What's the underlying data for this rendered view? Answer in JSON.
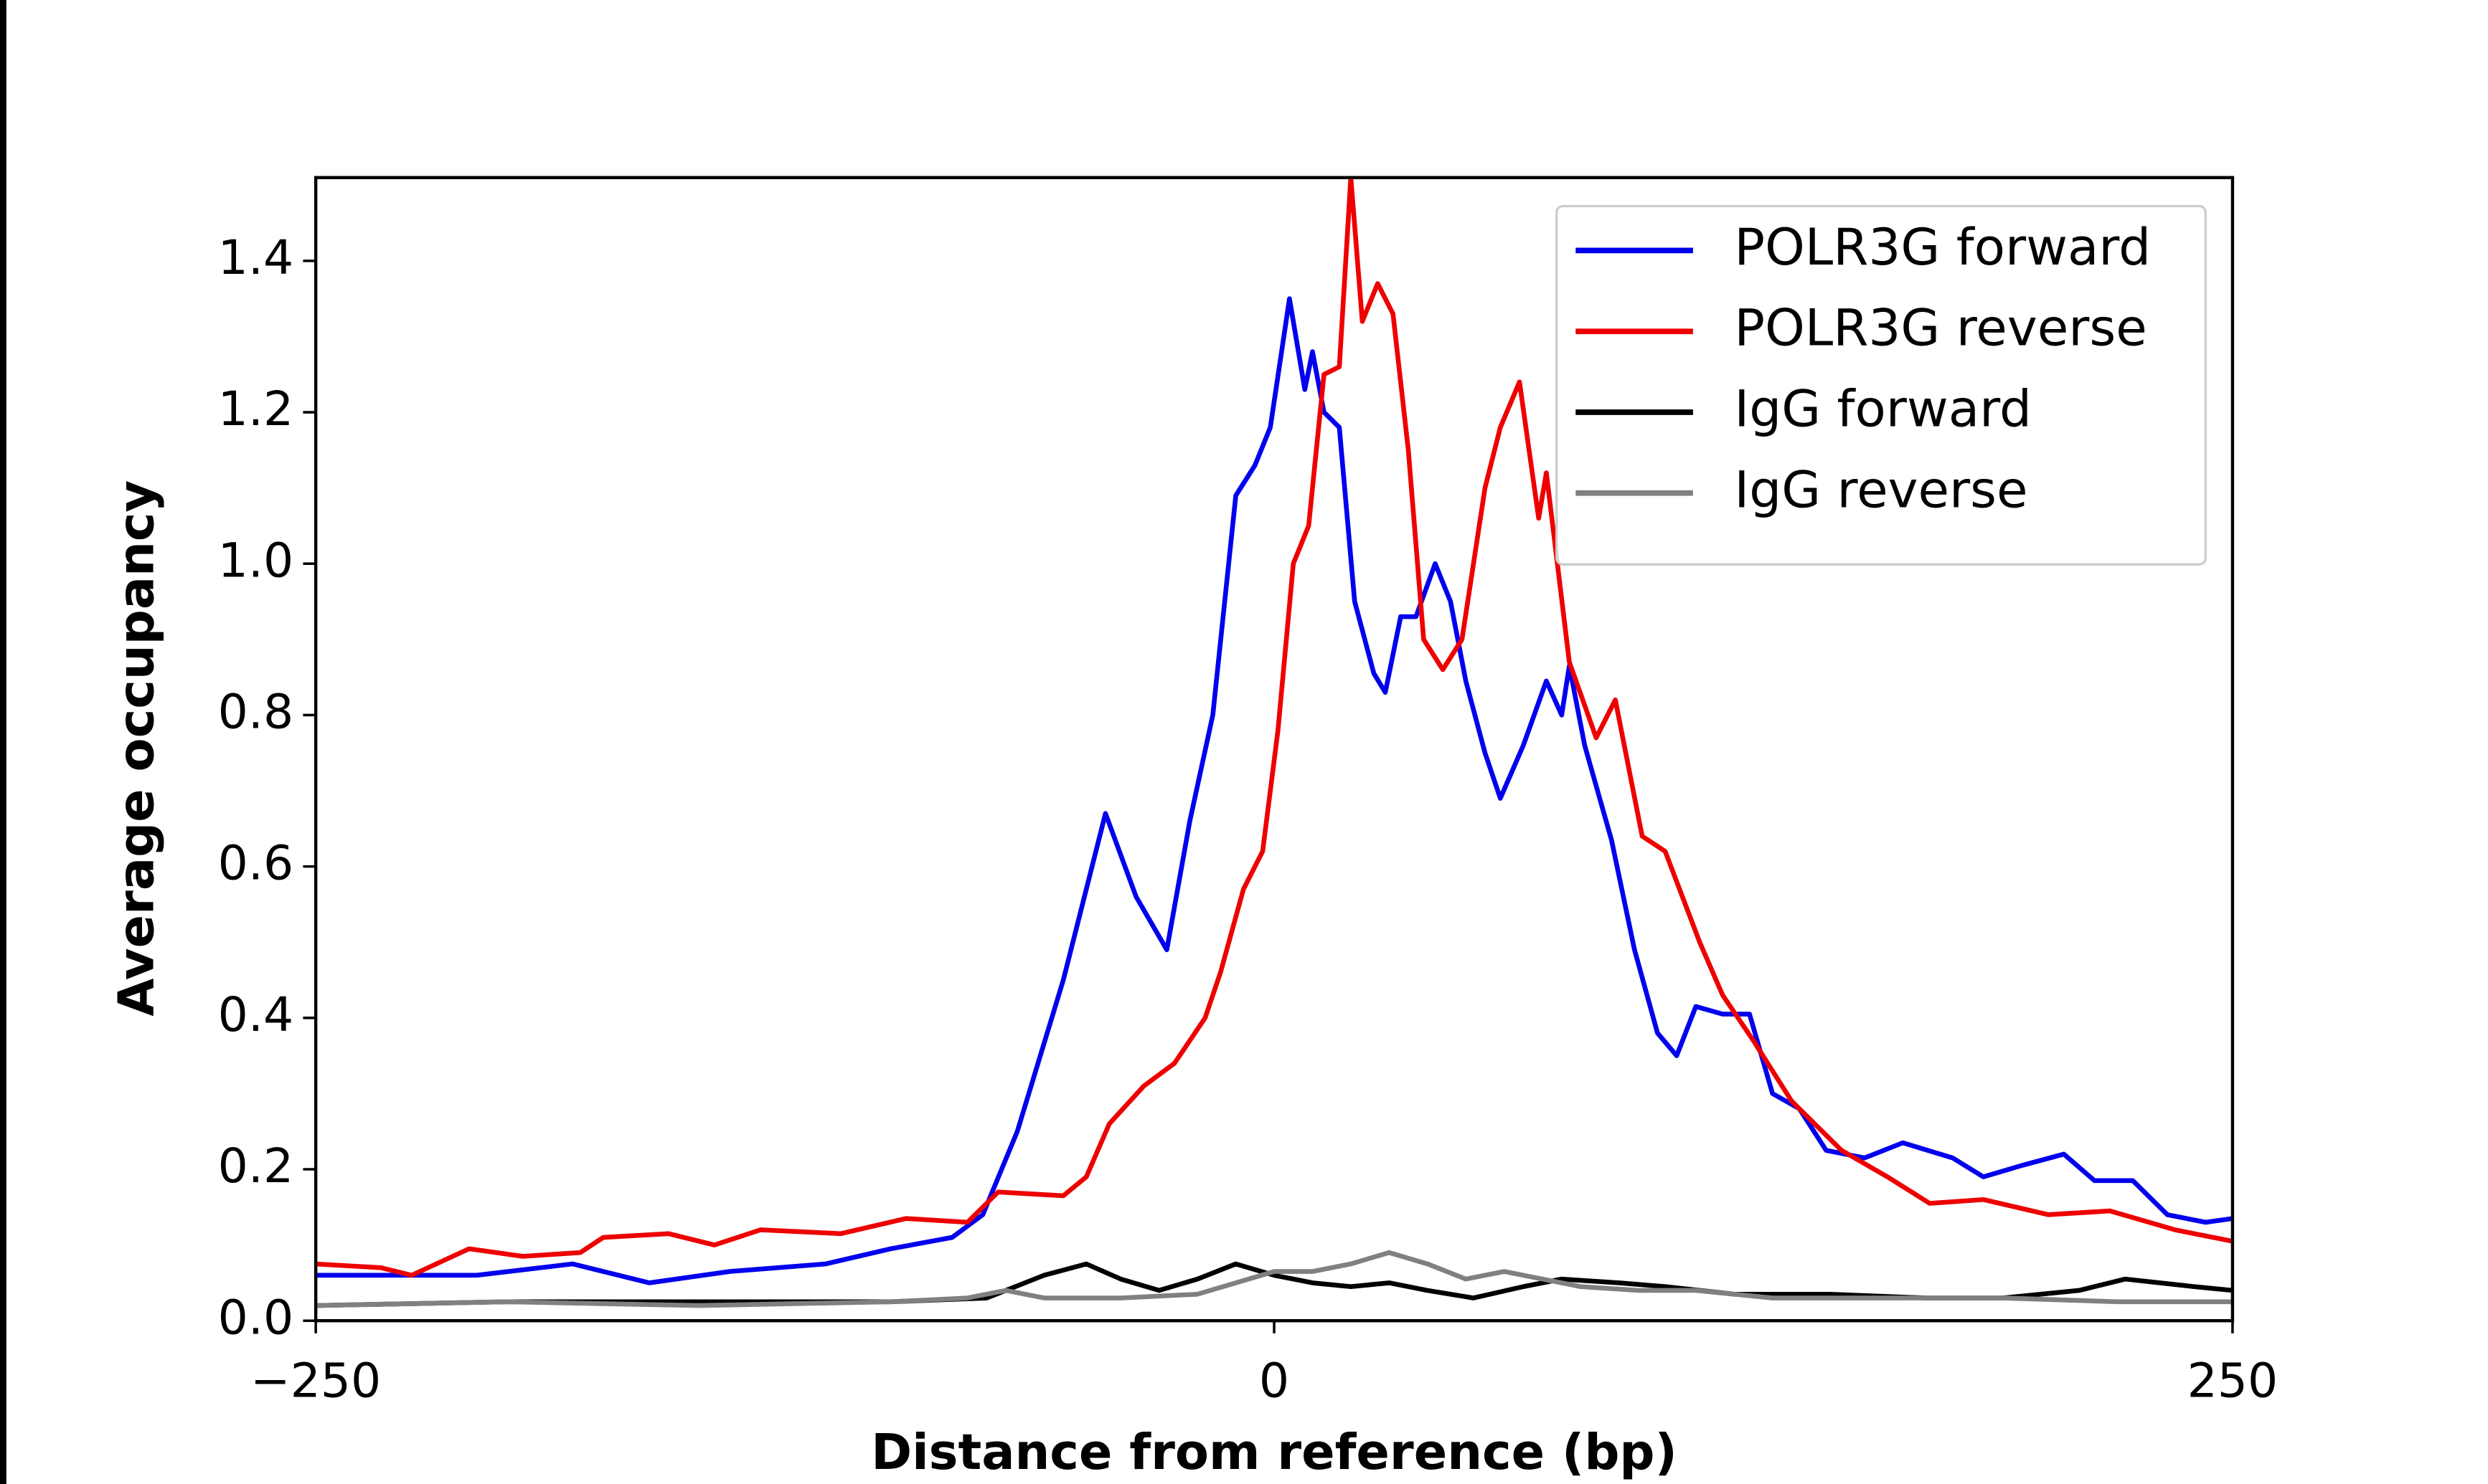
{
  "chart_data": {
    "type": "line",
    "xlabel": "Distance from reference (bp)",
    "ylabel": "Average occupancy",
    "xlim": [
      -250,
      250
    ],
    "ylim": [
      0,
      1.51
    ],
    "xticks": [
      {
        "value": -250,
        "label": "−250"
      },
      0,
      250
    ],
    "yticks": [
      {
        "value": 0,
        "label": "0.0"
      },
      0.2,
      0.4,
      0.6,
      0.8,
      {
        "value": 1,
        "label": "1.0"
      },
      1.2,
      1.4
    ],
    "legend": "upper right",
    "series": [
      {
        "name": "POLR3G forward",
        "color": "#0000ee",
        "x": [
          -250,
          -208,
          -183,
          -163,
          -142,
          -117,
          -100,
          -84,
          -76,
          -67,
          -55,
          -44,
          -36,
          -28,
          -22,
          -16,
          -10,
          -5,
          -1,
          4,
          8,
          10,
          13,
          17,
          21,
          26,
          29,
          33,
          37,
          42,
          46,
          50,
          55,
          59,
          65,
          71,
          75,
          77,
          81,
          88,
          94,
          100,
          105,
          110,
          117,
          124,
          130,
          137,
          144,
          154,
          164,
          177,
          185,
          195,
          206,
          214,
          224,
          233,
          243,
          250
        ],
        "values": [
          0.06,
          0.06,
          0.075,
          0.05,
          0.065,
          0.075,
          0.095,
          0.11,
          0.14,
          0.25,
          0.45,
          0.67,
          0.56,
          0.49,
          0.66,
          0.8,
          1.09,
          1.13,
          1.18,
          1.35,
          1.23,
          1.28,
          1.2,
          1.18,
          0.95,
          0.855,
          0.83,
          0.93,
          0.93,
          1.0,
          0.95,
          0.845,
          0.75,
          0.69,
          0.76,
          0.845,
          0.8,
          0.865,
          0.76,
          0.635,
          0.49,
          0.38,
          0.35,
          0.415,
          0.405,
          0.405,
          0.3,
          0.28,
          0.225,
          0.215,
          0.235,
          0.215,
          0.19,
          0.205,
          0.22,
          0.185,
          0.185,
          0.14,
          0.13,
          0.135
        ]
      },
      {
        "name": "POLR3G reverse",
        "color": "#ee0000",
        "x": [
          -250,
          -233,
          -225,
          -210,
          -196,
          -181,
          -175,
          -158,
          -146,
          -134,
          -113,
          -96,
          -80,
          -72,
          -55,
          -49,
          -43,
          -34,
          -26,
          -18,
          -14,
          -8,
          -3,
          1,
          5,
          9,
          13,
          17,
          20,
          23,
          27,
          31,
          35,
          39,
          44,
          49,
          55,
          59,
          64,
          69,
          71,
          77,
          84,
          89,
          96,
          102,
          111,
          117,
          125,
          135,
          148,
          160,
          171,
          185,
          202,
          218,
          235,
          250
        ],
        "values": [
          0.075,
          0.07,
          0.06,
          0.095,
          0.085,
          0.09,
          0.11,
          0.115,
          0.1,
          0.12,
          0.115,
          0.135,
          0.13,
          0.17,
          0.165,
          0.19,
          0.26,
          0.31,
          0.34,
          0.4,
          0.46,
          0.57,
          0.62,
          0.78,
          1.0,
          1.05,
          1.25,
          1.26,
          1.51,
          1.32,
          1.37,
          1.33,
          1.15,
          0.9,
          0.86,
          0.9,
          1.1,
          1.18,
          1.24,
          1.06,
          1.12,
          0.87,
          0.77,
          0.82,
          0.64,
          0.62,
          0.5,
          0.43,
          0.37,
          0.29,
          0.225,
          0.19,
          0.155,
          0.16,
          0.14,
          0.145,
          0.12,
          0.105
        ]
      },
      {
        "name": "IgG forward",
        "color": "#000000",
        "x": [
          -250,
          -200,
          -150,
          -100,
          -75,
          -60,
          -49,
          -40,
          -30,
          -20,
          -10,
          0,
          10,
          20,
          30,
          40,
          52,
          65,
          75,
          90,
          102,
          120,
          145,
          170,
          190,
          210,
          222,
          240,
          250
        ],
        "values": [
          0.02,
          0.025,
          0.025,
          0.025,
          0.03,
          0.06,
          0.075,
          0.055,
          0.04,
          0.055,
          0.075,
          0.06,
          0.05,
          0.045,
          0.05,
          0.04,
          0.03,
          0.045,
          0.055,
          0.05,
          0.045,
          0.035,
          0.035,
          0.03,
          0.03,
          0.04,
          0.055,
          0.045,
          0.04
        ]
      },
      {
        "name": "IgG reverse",
        "color": "#808080",
        "x": [
          -250,
          -200,
          -150,
          -100,
          -80,
          -70,
          -60,
          -40,
          -20,
          -10,
          0,
          10,
          20,
          30,
          40,
          50,
          60,
          70,
          80,
          95,
          110,
          130,
          160,
          190,
          220,
          250
        ],
        "values": [
          0.02,
          0.025,
          0.02,
          0.025,
          0.03,
          0.04,
          0.03,
          0.03,
          0.035,
          0.05,
          0.065,
          0.065,
          0.075,
          0.09,
          0.075,
          0.055,
          0.065,
          0.055,
          0.045,
          0.04,
          0.04,
          0.03,
          0.03,
          0.03,
          0.025,
          0.025
        ]
      }
    ]
  }
}
